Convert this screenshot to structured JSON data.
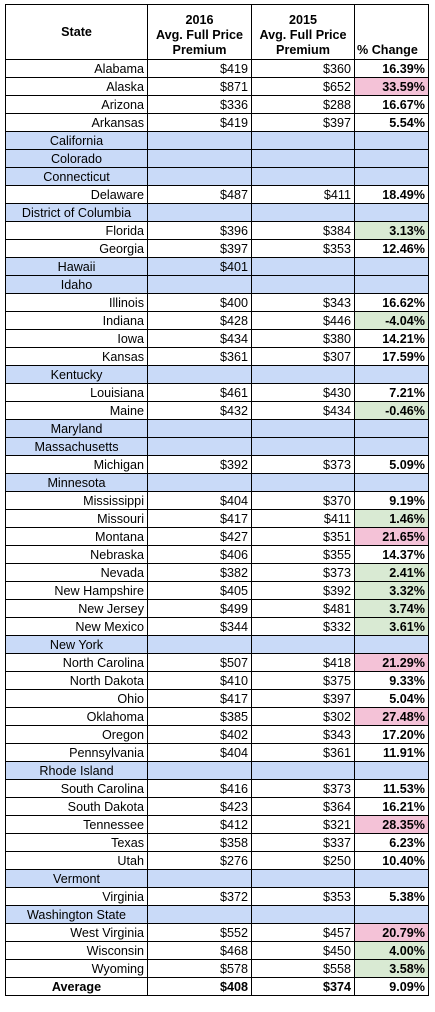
{
  "headers": {
    "state": "State",
    "col2016": [
      "2016",
      "Avg. Full Price",
      "Premium"
    ],
    "col2015": [
      "2015",
      "Avg. Full Price",
      "Premium"
    ],
    "change": "% Change"
  },
  "colors": {
    "no_data": "#c9daf8",
    "high_increase": "#f4c2d7",
    "low_change": "#d9ead3"
  },
  "rows": [
    {
      "state": "Alabama",
      "p2016": "$419",
      "p2015": "$360",
      "change": "16.39%",
      "highlight": ""
    },
    {
      "state": "Alaska",
      "p2016": "$871",
      "p2015": "$652",
      "change": "33.59%",
      "highlight": "pink"
    },
    {
      "state": "Arizona",
      "p2016": "$336",
      "p2015": "$288",
      "change": "16.67%",
      "highlight": ""
    },
    {
      "state": "Arkansas",
      "p2016": "$419",
      "p2015": "$397",
      "change": "5.54%",
      "highlight": ""
    },
    {
      "state": "California",
      "p2016": "",
      "p2015": "",
      "change": "",
      "highlight": "",
      "no_data": true
    },
    {
      "state": "Colorado",
      "p2016": "",
      "p2015": "",
      "change": "",
      "highlight": "",
      "no_data": true
    },
    {
      "state": "Connecticut",
      "p2016": "",
      "p2015": "",
      "change": "",
      "highlight": "",
      "no_data": true
    },
    {
      "state": "Delaware",
      "p2016": "$487",
      "p2015": "$411",
      "change": "18.49%",
      "highlight": ""
    },
    {
      "state": "District of Columbia",
      "p2016": "",
      "p2015": "",
      "change": "",
      "highlight": "",
      "no_data": true
    },
    {
      "state": "Florida",
      "p2016": "$396",
      "p2015": "$384",
      "change": "3.13%",
      "highlight": "green"
    },
    {
      "state": "Georgia",
      "p2016": "$397",
      "p2015": "$353",
      "change": "12.46%",
      "highlight": ""
    },
    {
      "state": "Hawaii",
      "p2016": "$401",
      "p2015": "",
      "change": "",
      "highlight": "",
      "no_data": true
    },
    {
      "state": "Idaho",
      "p2016": "",
      "p2015": "",
      "change": "",
      "highlight": "",
      "no_data": true
    },
    {
      "state": "Illinois",
      "p2016": "$400",
      "p2015": "$343",
      "change": "16.62%",
      "highlight": ""
    },
    {
      "state": "Indiana",
      "p2016": "$428",
      "p2015": "$446",
      "change": "-4.04%",
      "highlight": "green"
    },
    {
      "state": "Iowa",
      "p2016": "$434",
      "p2015": "$380",
      "change": "14.21%",
      "highlight": ""
    },
    {
      "state": "Kansas",
      "p2016": "$361",
      "p2015": "$307",
      "change": "17.59%",
      "highlight": ""
    },
    {
      "state": "Kentucky",
      "p2016": "",
      "p2015": "",
      "change": "",
      "highlight": "",
      "no_data": true
    },
    {
      "state": "Louisiana",
      "p2016": "$461",
      "p2015": "$430",
      "change": "7.21%",
      "highlight": ""
    },
    {
      "state": "Maine",
      "p2016": "$432",
      "p2015": "$434",
      "change": "-0.46%",
      "highlight": "green"
    },
    {
      "state": "Maryland",
      "p2016": "",
      "p2015": "",
      "change": "",
      "highlight": "",
      "no_data": true
    },
    {
      "state": "Massachusetts",
      "p2016": "",
      "p2015": "",
      "change": "",
      "highlight": "",
      "no_data": true
    },
    {
      "state": "Michigan",
      "p2016": "$392",
      "p2015": "$373",
      "change": "5.09%",
      "highlight": ""
    },
    {
      "state": "Minnesota",
      "p2016": "",
      "p2015": "",
      "change": "",
      "highlight": "",
      "no_data": true
    },
    {
      "state": "Mississippi",
      "p2016": "$404",
      "p2015": "$370",
      "change": "9.19%",
      "highlight": ""
    },
    {
      "state": "Missouri",
      "p2016": "$417",
      "p2015": "$411",
      "change": "1.46%",
      "highlight": "green"
    },
    {
      "state": "Montana",
      "p2016": "$427",
      "p2015": "$351",
      "change": "21.65%",
      "highlight": "pink"
    },
    {
      "state": "Nebraska",
      "p2016": "$406",
      "p2015": "$355",
      "change": "14.37%",
      "highlight": ""
    },
    {
      "state": "Nevada",
      "p2016": "$382",
      "p2015": "$373",
      "change": "2.41%",
      "highlight": "green"
    },
    {
      "state": "New Hampshire",
      "p2016": "$405",
      "p2015": "$392",
      "change": "3.32%",
      "highlight": "green"
    },
    {
      "state": "New Jersey",
      "p2016": "$499",
      "p2015": "$481",
      "change": "3.74%",
      "highlight": "green"
    },
    {
      "state": "New Mexico",
      "p2016": "$344",
      "p2015": "$332",
      "change": "3.61%",
      "highlight": "green"
    },
    {
      "state": "New York",
      "p2016": "",
      "p2015": "",
      "change": "",
      "highlight": "",
      "no_data": true
    },
    {
      "state": "North Carolina",
      "p2016": "$507",
      "p2015": "$418",
      "change": "21.29%",
      "highlight": "pink"
    },
    {
      "state": "North Dakota",
      "p2016": "$410",
      "p2015": "$375",
      "change": "9.33%",
      "highlight": ""
    },
    {
      "state": "Ohio",
      "p2016": "$417",
      "p2015": "$397",
      "change": "5.04%",
      "highlight": ""
    },
    {
      "state": "Oklahoma",
      "p2016": "$385",
      "p2015": "$302",
      "change": "27.48%",
      "highlight": "pink"
    },
    {
      "state": "Oregon",
      "p2016": "$402",
      "p2015": "$343",
      "change": "17.20%",
      "highlight": ""
    },
    {
      "state": "Pennsylvania",
      "p2016": "$404",
      "p2015": "$361",
      "change": "11.91%",
      "highlight": ""
    },
    {
      "state": "Rhode Island",
      "p2016": "",
      "p2015": "",
      "change": "",
      "highlight": "",
      "no_data": true
    },
    {
      "state": "South Carolina",
      "p2016": "$416",
      "p2015": "$373",
      "change": "11.53%",
      "highlight": ""
    },
    {
      "state": "South Dakota",
      "p2016": "$423",
      "p2015": "$364",
      "change": "16.21%",
      "highlight": ""
    },
    {
      "state": "Tennessee",
      "p2016": "$412",
      "p2015": "$321",
      "change": "28.35%",
      "highlight": "pink"
    },
    {
      "state": "Texas",
      "p2016": "$358",
      "p2015": "$337",
      "change": "6.23%",
      "highlight": ""
    },
    {
      "state": "Utah",
      "p2016": "$276",
      "p2015": "$250",
      "change": "10.40%",
      "highlight": ""
    },
    {
      "state": "Vermont",
      "p2016": "",
      "p2015": "",
      "change": "",
      "highlight": "",
      "no_data": true
    },
    {
      "state": "Virginia",
      "p2016": "$372",
      "p2015": "$353",
      "change": "5.38%",
      "highlight": ""
    },
    {
      "state": "Washington State",
      "p2016": "",
      "p2015": "",
      "change": "",
      "highlight": "",
      "no_data": true
    },
    {
      "state": "West Virginia",
      "p2016": "$552",
      "p2015": "$457",
      "change": "20.79%",
      "highlight": "pink"
    },
    {
      "state": "Wisconsin",
      "p2016": "$468",
      "p2015": "$450",
      "change": "4.00%",
      "highlight": "green"
    },
    {
      "state": "Wyoming",
      "p2016": "$578",
      "p2015": "$558",
      "change": "3.58%",
      "highlight": "green"
    }
  ],
  "average": {
    "label": "Average",
    "p2016": "$408",
    "p2015": "$374",
    "change": "9.09%"
  }
}
